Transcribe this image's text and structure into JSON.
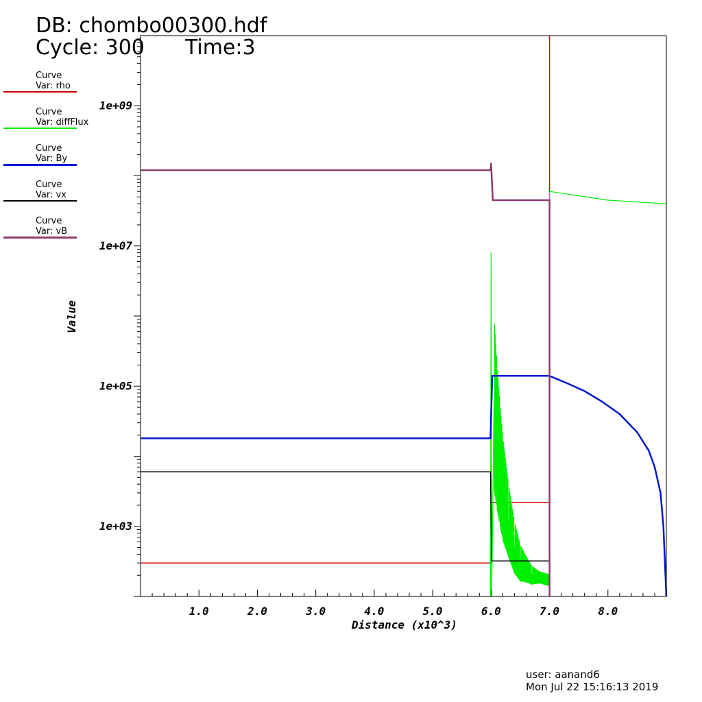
{
  "header": {
    "db": "DB: chombo00300.hdf",
    "cycle": "Cycle: 300",
    "time": "Time:3"
  },
  "legend": [
    {
      "title": "Curve",
      "var": "Var: rho",
      "color": "#d00000"
    },
    {
      "title": "Curve",
      "var": "Var: diffFlux",
      "color": "#00ee00"
    },
    {
      "title": "Curve",
      "var": "Var: By",
      "color": "#0018d0"
    },
    {
      "title": "Curve",
      "var": "Var: vx",
      "color": "#000000"
    },
    {
      "title": "Curve",
      "var": "Var: vB",
      "color": "#8b3a70"
    }
  ],
  "footer": {
    "user": "user: aanand6",
    "date": "Mon Jul 22 15:16:13 2019"
  },
  "chart_data": {
    "type": "line",
    "xlabel": "Distance (x10^3)",
    "ylabel": "Value",
    "yscale": "log",
    "xlim": [
      0,
      9
    ],
    "ylim": [
      100,
      10000000000.0
    ],
    "xticks": [
      "1.0",
      "2.0",
      "3.0",
      "4.0",
      "5.0",
      "6.0",
      "7.0",
      "8.0"
    ],
    "xtick_values": [
      1,
      2,
      3,
      4,
      5,
      6,
      7,
      8
    ],
    "yticks": [
      "1e+03",
      "1e+05",
      "1e+07",
      "1e+09"
    ],
    "ytick_values": [
      1000,
      100000,
      10000000,
      1000000000
    ],
    "series": [
      {
        "name": "rho",
        "color": "#d00000",
        "width": 1.5,
        "points": [
          [
            0,
            300
          ],
          [
            5.99,
            300
          ],
          [
            6.0,
            2200
          ],
          [
            7.0,
            2200
          ]
        ],
        "vertical": {
          "x": 7.0,
          "from": 100,
          "to": 10000000000.0
        }
      },
      {
        "name": "diffFlux",
        "color": "#00ee00",
        "width": 1.2,
        "points": [
          [
            5.99,
            100
          ],
          [
            6.0,
            8000000.0
          ],
          [
            6.01,
            100
          ],
          [
            6.05,
            60000
          ],
          [
            6.1,
            20000
          ],
          [
            6.15,
            8000
          ],
          [
            6.2,
            3500
          ],
          [
            6.3,
            1200
          ],
          [
            6.4,
            500
          ],
          [
            6.5,
            300
          ],
          [
            6.7,
            200
          ],
          [
            7.0,
            170
          ],
          [
            7.0,
            60000000.0
          ],
          [
            8.0,
            45000000.0
          ],
          [
            9.0,
            40000000.0
          ]
        ],
        "oscillating": true
      },
      {
        "name": "By",
        "color": "#0018d0",
        "width": 2.5,
        "points": [
          [
            0,
            18000
          ],
          [
            5.99,
            18000
          ],
          [
            6.02,
            140000
          ],
          [
            7.0,
            140000
          ],
          [
            7.3,
            110000
          ],
          [
            7.6,
            85000
          ],
          [
            7.9,
            60000
          ],
          [
            8.2,
            40000
          ],
          [
            8.5,
            22000
          ],
          [
            8.7,
            12000
          ],
          [
            8.8,
            7000
          ],
          [
            8.9,
            3000
          ],
          [
            8.95,
            1000
          ],
          [
            9.0,
            100
          ]
        ]
      },
      {
        "name": "vx",
        "color": "#000000",
        "width": 1.5,
        "points": [
          [
            0,
            6000
          ],
          [
            5.99,
            6000
          ],
          [
            6.0,
            1500
          ],
          [
            6.01,
            320
          ],
          [
            7.0,
            320
          ]
        ]
      },
      {
        "name": "vB",
        "color": "#8b3a70",
        "width": 2.5,
        "points": [
          [
            0,
            120000000.0
          ],
          [
            5.99,
            120000000.0
          ],
          [
            6.0,
            150000000.0
          ],
          [
            6.03,
            45000000.0
          ],
          [
            7.0,
            45000000.0
          ],
          [
            7.0,
            100
          ]
        ]
      }
    ]
  }
}
